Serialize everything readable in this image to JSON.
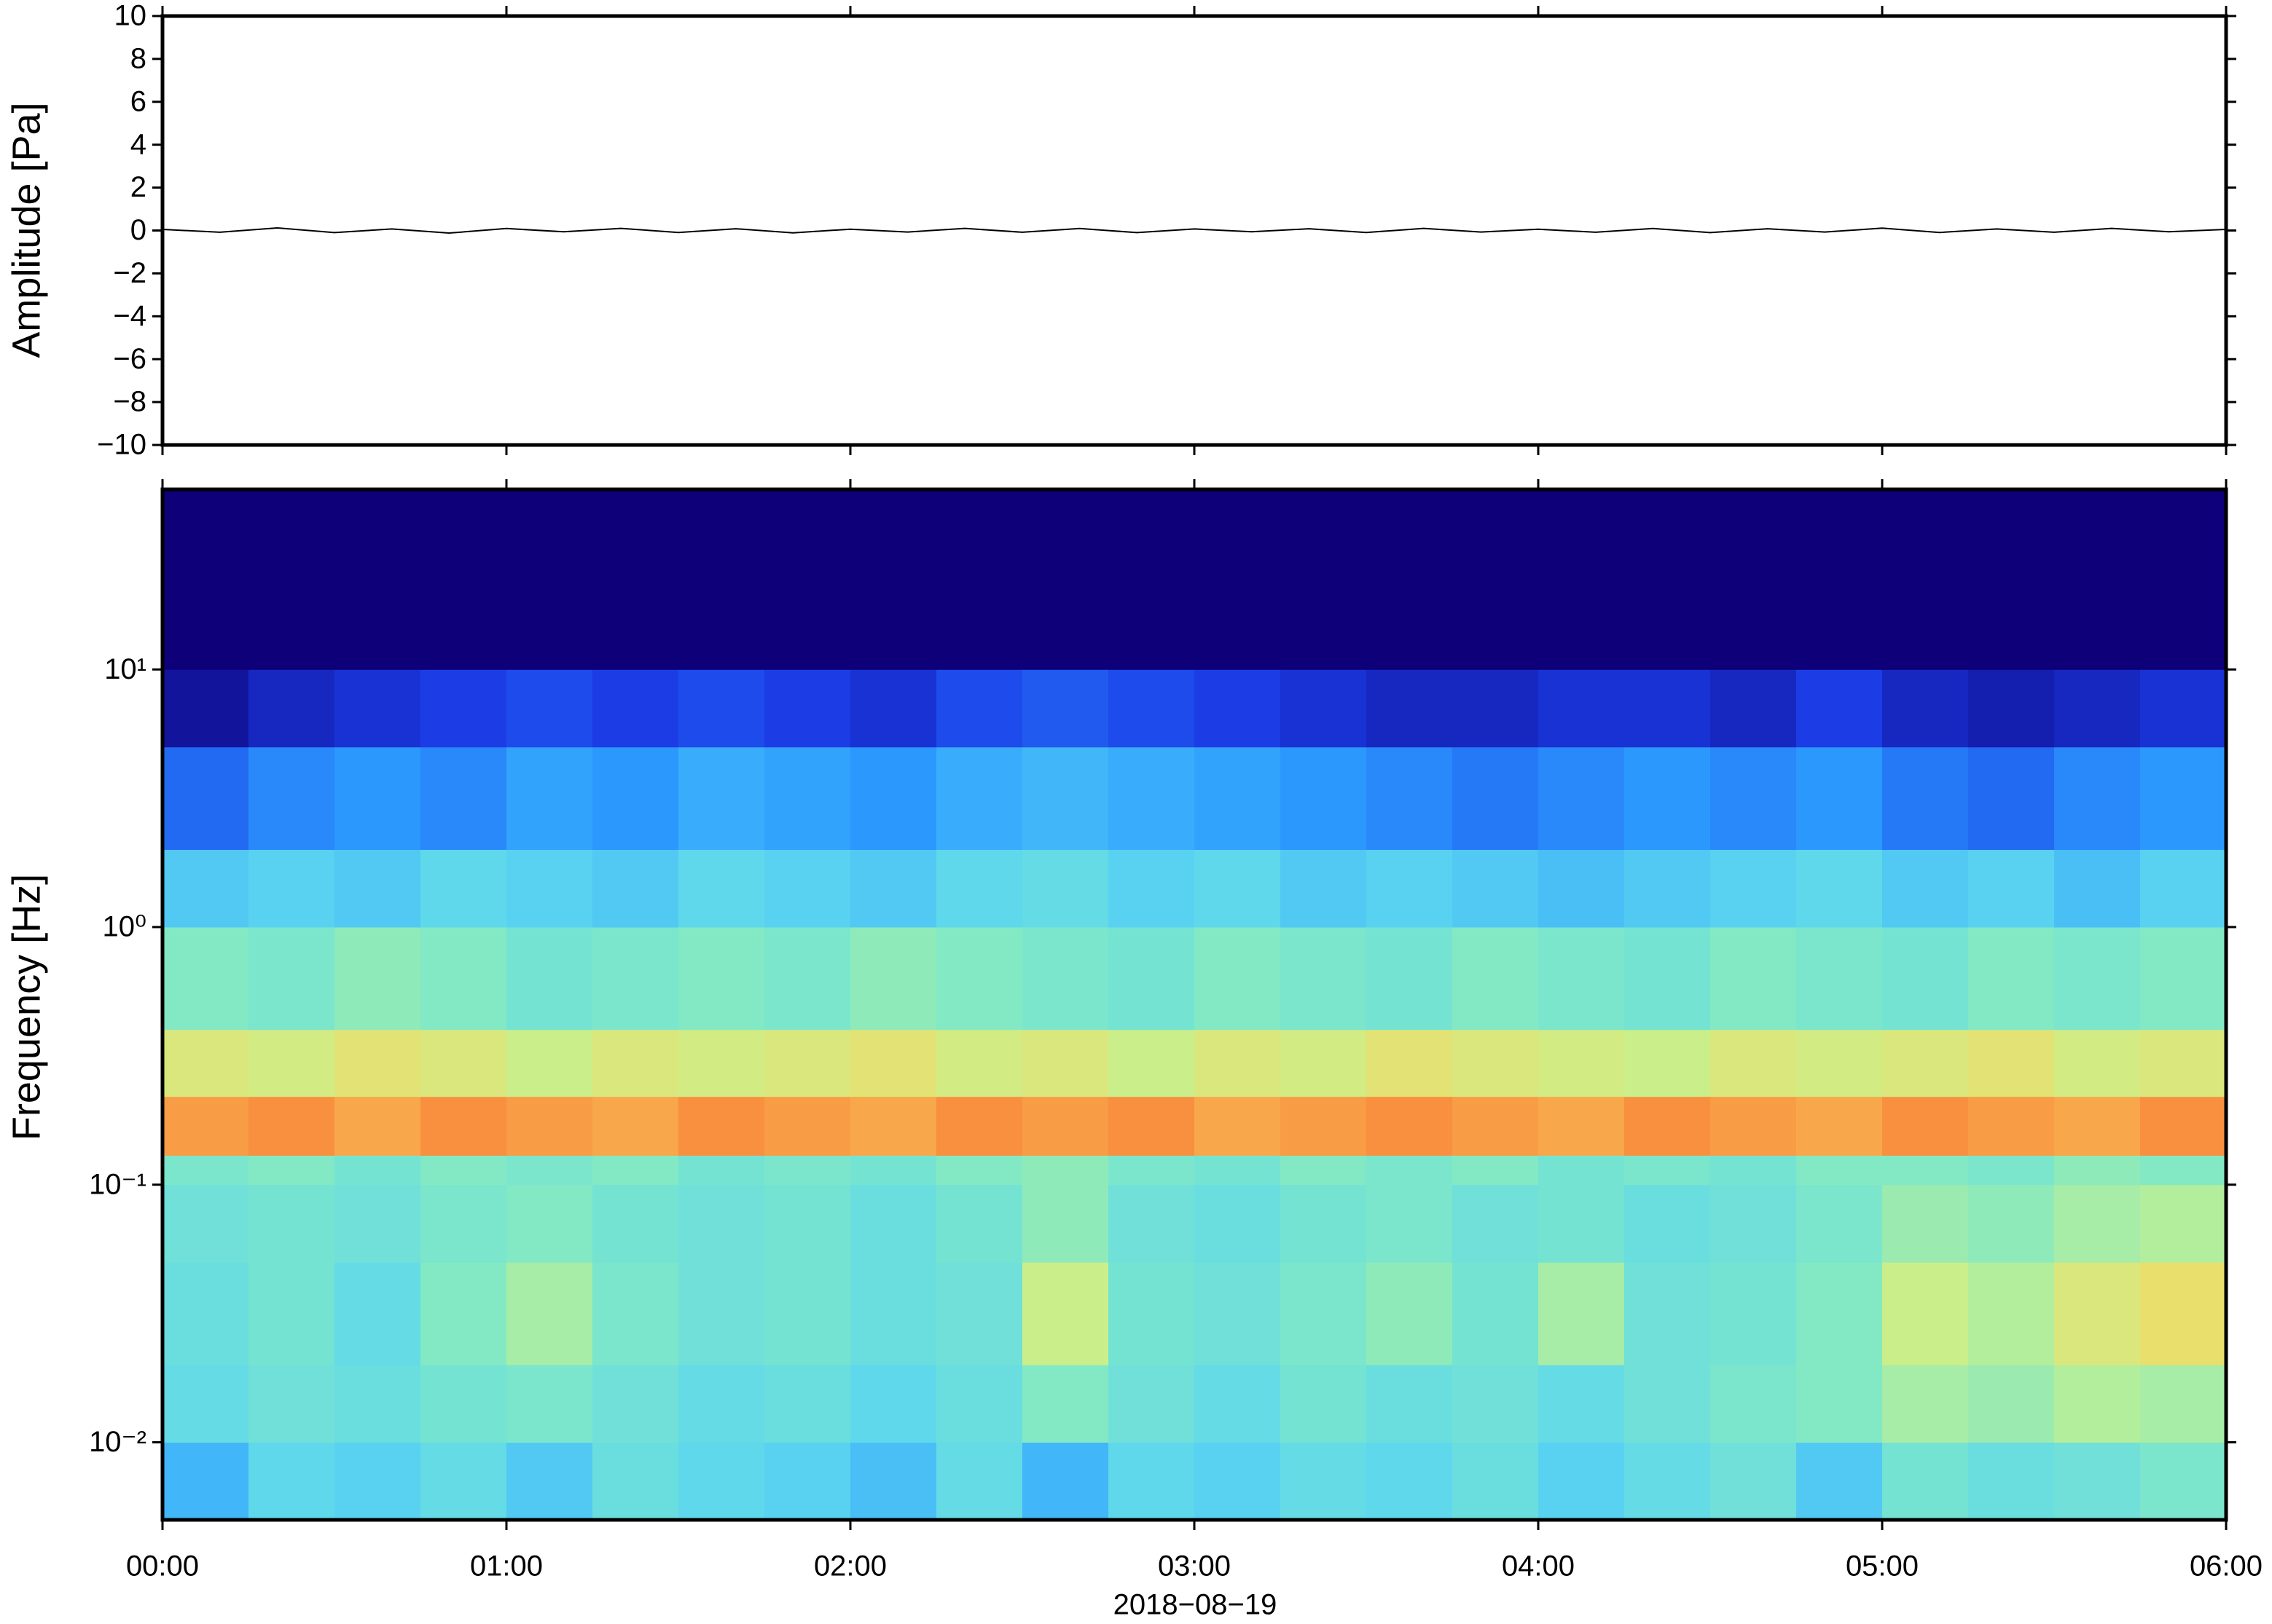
{
  "chart_data": [
    {
      "type": "line",
      "ylabel": "Amplitude [Pa]",
      "color": "#000000",
      "xlim": [
        0,
        360
      ],
      "xticks": [
        0,
        60,
        120,
        180,
        240,
        300,
        360
      ],
      "ylim": [
        -10,
        10
      ],
      "yticks": [
        {
          "value": -10,
          "label": "−10"
        },
        {
          "value": -8,
          "label": "−8"
        },
        {
          "value": -6,
          "label": "−6"
        },
        {
          "value": -4,
          "label": "−4"
        },
        {
          "value": -2,
          "label": "−2"
        },
        0,
        2,
        4,
        6,
        8,
        10
      ],
      "x": [
        0,
        10,
        20,
        30,
        40,
        50,
        60,
        70,
        80,
        90,
        100,
        110,
        120,
        130,
        140,
        150,
        160,
        170,
        180,
        190,
        200,
        210,
        220,
        230,
        240,
        250,
        260,
        270,
        280,
        290,
        300,
        310,
        320,
        330,
        340,
        350,
        360
      ],
      "values": [
        0.05,
        -0.08,
        0.12,
        -0.1,
        0.07,
        -0.12,
        0.09,
        -0.06,
        0.1,
        -0.09,
        0.08,
        -0.11,
        0.06,
        -0.07,
        0.1,
        -0.08,
        0.09,
        -0.1,
        0.07,
        -0.06,
        0.08,
        -0.09,
        0.1,
        -0.07,
        0.06,
        -0.08,
        0.09,
        -0.1,
        0.08,
        -0.07,
        0.11,
        -0.09,
        0.07,
        -0.08,
        0.1,
        -0.06,
        0.05
      ]
    },
    {
      "type": "heatmap",
      "ylabel": "Frequency [Hz]",
      "xlabel": "2018−08−19",
      "ylog": true,
      "xlim": [
        0,
        360
      ],
      "xticks": [
        {
          "value": 0,
          "label": "00:00"
        },
        {
          "value": 60,
          "label": "01:00"
        },
        {
          "value": 120,
          "label": "02:00"
        },
        {
          "value": 180,
          "label": "03:00"
        },
        {
          "value": 240,
          "label": "04:00"
        },
        {
          "value": 300,
          "label": "05:00"
        },
        {
          "value": 360,
          "label": "06:00"
        }
      ],
      "ylim": [
        0.005,
        50
      ],
      "yticks": [
        {
          "value": 0.01,
          "label": "10⁻²"
        },
        {
          "value": 0.1,
          "label": "10⁻¹"
        },
        {
          "value": 1,
          "label": "10⁰"
        },
        {
          "value": 10,
          "label": "10¹"
        }
      ],
      "x": [
        0,
        15,
        30,
        45,
        60,
        75,
        90,
        105,
        120,
        135,
        150,
        165,
        180,
        195,
        210,
        225,
        240,
        255,
        270,
        285,
        300,
        315,
        330,
        345,
        360
      ],
      "y": [
        0.005,
        0.01,
        0.02,
        0.05,
        0.1,
        0.13,
        0.22,
        0.4,
        1,
        2,
        5,
        10,
        50
      ],
      "colormap": [
        "#0d0078",
        "#1c3ee8",
        "#2c9cff",
        "#5cd6f0",
        "#7ee8c8",
        "#c8f08c",
        "#f8d860",
        "#f89040"
      ],
      "z": [
        [
          0.3,
          0.38,
          0.36,
          0.4,
          0.34,
          0.42,
          0.38,
          0.36,
          0.32,
          0.4,
          0.3,
          0.38,
          0.36,
          0.4,
          0.38,
          0.42,
          0.36,
          0.4,
          0.44,
          0.34,
          0.46,
          0.42,
          0.44,
          0.48
        ],
        [
          0.4,
          0.44,
          0.42,
          0.46,
          0.48,
          0.44,
          0.4,
          0.42,
          0.38,
          0.42,
          0.5,
          0.44,
          0.4,
          0.46,
          0.42,
          0.44,
          0.4,
          0.44,
          0.48,
          0.5,
          0.56,
          0.54,
          0.58,
          0.56
        ],
        [
          0.42,
          0.46,
          0.4,
          0.5,
          0.56,
          0.48,
          0.44,
          0.46,
          0.42,
          0.44,
          0.62,
          0.46,
          0.44,
          0.48,
          0.52,
          0.46,
          0.56,
          0.44,
          0.46,
          0.5,
          0.62,
          0.58,
          0.66,
          0.7
        ],
        [
          0.44,
          0.46,
          0.44,
          0.48,
          0.5,
          0.46,
          0.44,
          0.46,
          0.42,
          0.46,
          0.52,
          0.44,
          0.42,
          0.46,
          0.48,
          0.44,
          0.46,
          0.42,
          0.44,
          0.48,
          0.54,
          0.52,
          0.56,
          0.58
        ],
        [
          0.48,
          0.5,
          0.46,
          0.5,
          0.48,
          0.5,
          0.46,
          0.48,
          0.46,
          0.5,
          0.52,
          0.48,
          0.46,
          0.5,
          0.48,
          0.5,
          0.46,
          0.48,
          0.46,
          0.5,
          0.5,
          0.48,
          0.52,
          0.5
        ],
        [
          0.84,
          0.86,
          0.82,
          0.86,
          0.84,
          0.82,
          0.86,
          0.84,
          0.82,
          0.86,
          0.84,
          0.86,
          0.82,
          0.84,
          0.86,
          0.84,
          0.82,
          0.86,
          0.84,
          0.82,
          0.86,
          0.84,
          0.82,
          0.86
        ],
        [
          0.66,
          0.64,
          0.68,
          0.66,
          0.62,
          0.66,
          0.64,
          0.66,
          0.68,
          0.64,
          0.66,
          0.62,
          0.66,
          0.64,
          0.68,
          0.66,
          0.64,
          0.62,
          0.66,
          0.64,
          0.66,
          0.68,
          0.64,
          0.66
        ],
        [
          0.5,
          0.48,
          0.52,
          0.5,
          0.46,
          0.48,
          0.5,
          0.48,
          0.52,
          0.5,
          0.48,
          0.46,
          0.5,
          0.48,
          0.46,
          0.5,
          0.48,
          0.46,
          0.5,
          0.48,
          0.46,
          0.5,
          0.48,
          0.5
        ],
        [
          0.34,
          0.36,
          0.34,
          0.38,
          0.36,
          0.34,
          0.38,
          0.36,
          0.34,
          0.38,
          0.4,
          0.36,
          0.38,
          0.34,
          0.36,
          0.34,
          0.32,
          0.34,
          0.36,
          0.38,
          0.34,
          0.36,
          0.32,
          0.36
        ],
        [
          0.18,
          0.22,
          0.24,
          0.22,
          0.26,
          0.24,
          0.28,
          0.26,
          0.24,
          0.28,
          0.3,
          0.28,
          0.26,
          0.24,
          0.22,
          0.2,
          0.22,
          0.24,
          0.22,
          0.24,
          0.2,
          0.18,
          0.22,
          0.24
        ],
        [
          0.04,
          0.08,
          0.1,
          0.12,
          0.14,
          0.12,
          0.14,
          0.12,
          0.1,
          0.14,
          0.16,
          0.14,
          0.12,
          0.1,
          0.08,
          0.08,
          0.1,
          0.1,
          0.08,
          0.12,
          0.08,
          0.06,
          0.08,
          0.1
        ],
        [
          0,
          0,
          0,
          0,
          0,
          0,
          0,
          0,
          0,
          0,
          0,
          0,
          0,
          0,
          0,
          0,
          0,
          0,
          0,
          0,
          0,
          0,
          0,
          0
        ]
      ]
    }
  ]
}
